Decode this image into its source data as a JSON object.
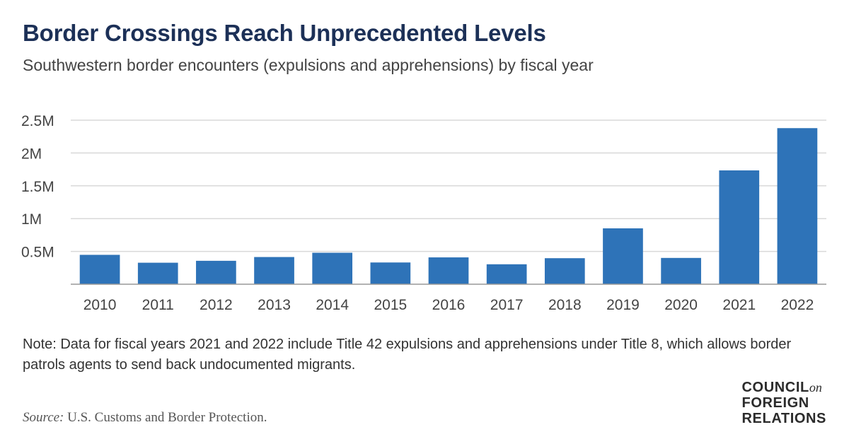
{
  "header": {
    "title": "Border Crossings Reach Unprecedented Levels",
    "subtitle": "Southwestern border encounters (expulsions and apprehensions) by fiscal year"
  },
  "chart_data": {
    "type": "bar",
    "title": "Border Crossings Reach Unprecedented Levels",
    "subtitle": "Southwestern border encounters (expulsions and apprehensions) by fiscal year",
    "xlabel": "",
    "ylabel": "",
    "categories": [
      "2010",
      "2011",
      "2012",
      "2013",
      "2014",
      "2015",
      "2016",
      "2017",
      "2018",
      "2019",
      "2020",
      "2021",
      "2022"
    ],
    "series": [
      {
        "name": "Southwestern border encounters",
        "values": [
          447731,
          327577,
          356873,
          414397,
          479371,
          331333,
          408870,
          303916,
          396579,
          851508,
          400651,
          1734686,
          2378944
        ]
      }
    ],
    "ylim": [
      0,
      2500000
    ],
    "yticks": [
      {
        "value": 500000,
        "label": "0.5M"
      },
      {
        "value": 1000000,
        "label": "1M"
      },
      {
        "value": 1500000,
        "label": "1.5M"
      },
      {
        "value": 2000000,
        "label": "2M"
      },
      {
        "value": 2500000,
        "label": "2.5M"
      }
    ],
    "grid": true,
    "legend": "none",
    "bar_color": "#2e73b8",
    "grid_color": "#d9d9d9",
    "axis_color": "#999999"
  },
  "note": "Note: Data for fiscal years 2021 and 2022 include Title 42 expulsions and apprehensions under Title 8, which allows border patrols agents to send back undocumented migrants.",
  "source": {
    "label": "Source:",
    "text": "U.S. Customs and Border Protection."
  },
  "logo": {
    "line1": "COUNCIL",
    "line1_suffix": "on",
    "line2": "FOREIGN",
    "line3": "RELATIONS"
  }
}
